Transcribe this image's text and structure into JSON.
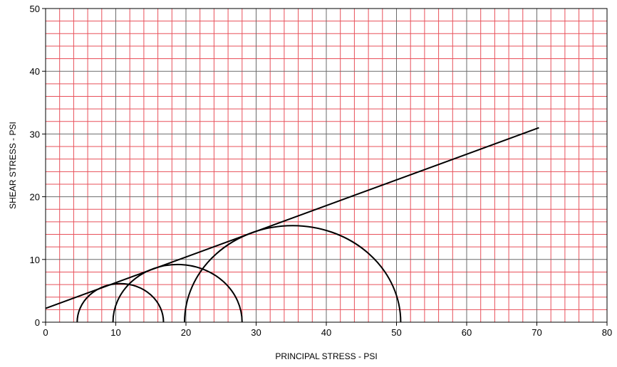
{
  "chart_data": {
    "type": "line",
    "title": "",
    "xlabel": "PRINCIPAL STRESS - PSI",
    "ylabel": "SHEAR STRESS - PSI",
    "xlim": [
      0,
      80
    ],
    "ylim": [
      0,
      50
    ],
    "x_ticks": [
      0,
      10,
      20,
      30,
      40,
      50,
      60,
      70,
      80
    ],
    "y_ticks": [
      0,
      10,
      20,
      30,
      40,
      50
    ],
    "grid": {
      "minor_step_x": 2,
      "minor_step_y": 2,
      "minor_color": "#e8505a",
      "major_color": "#6b6b6b"
    },
    "series": [
      {
        "kind": "envelope-line",
        "color": "#000000",
        "x": [
          0,
          70.3
        ],
        "y": [
          2.2,
          31.0
        ]
      },
      {
        "kind": "mohr-circle",
        "color": "#000000",
        "sigma3": 4.5,
        "sigma1": 16.8
      },
      {
        "kind": "mohr-circle",
        "color": "#000000",
        "sigma3": 9.6,
        "sigma1": 28.0
      },
      {
        "kind": "mohr-circle",
        "color": "#000000",
        "sigma3": 19.8,
        "sigma1": 50.6
      }
    ]
  }
}
